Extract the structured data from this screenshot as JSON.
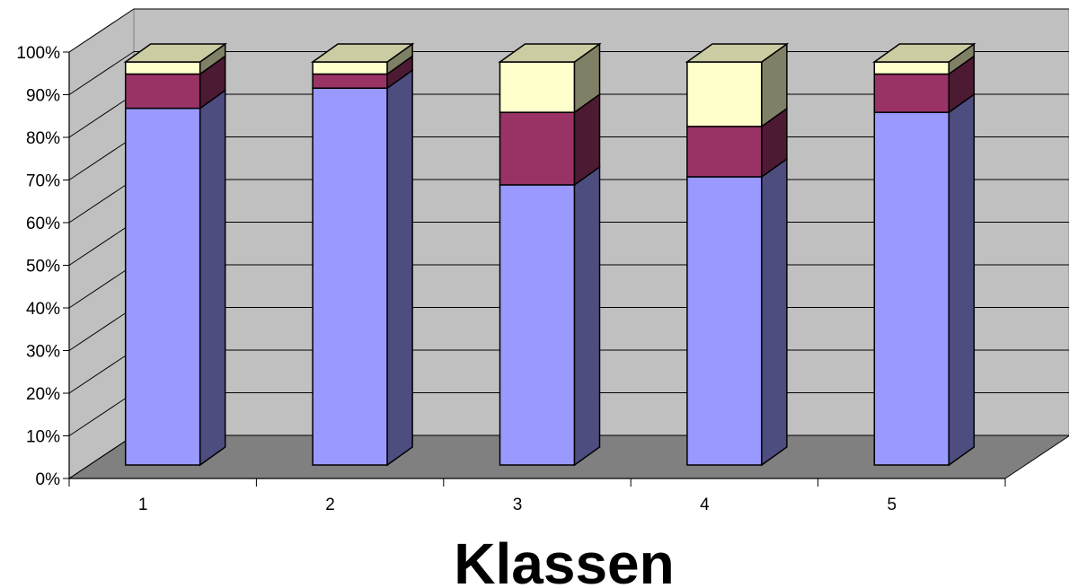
{
  "chart_data": {
    "type": "bar",
    "stacked": "percent",
    "three_d": true,
    "title": "",
    "xlabel": "Klassen",
    "ylabel": "",
    "categories": [
      "1",
      "2",
      "3",
      "4",
      "5"
    ],
    "y_ticks": [
      "0%",
      "10%",
      "20%",
      "30%",
      "40%",
      "50%",
      "60%",
      "70%",
      "80%",
      "90%",
      "100%"
    ],
    "ylim": [
      0,
      100
    ],
    "grid": true,
    "legend": "none",
    "series": [
      {
        "values": [
          88.5,
          93.5,
          69.5,
          71.5,
          87.5
        ],
        "color": "#9999ff",
        "side_color": "#4d4d80",
        "top_color": "#7a7acc"
      },
      {
        "values": [
          8.5,
          3.5,
          18.0,
          12.5,
          9.5
        ],
        "color": "#993366",
        "side_color": "#4d1a33",
        "top_color": "#7a2952"
      },
      {
        "values": [
          3.0,
          3.0,
          12.5,
          16.0,
          3.0
        ],
        "color": "#ffffcc",
        "side_color": "#808066",
        "top_color": "#cccca3"
      }
    ],
    "wall_color": "#c0c0c0",
    "floor_color": "#808080"
  }
}
